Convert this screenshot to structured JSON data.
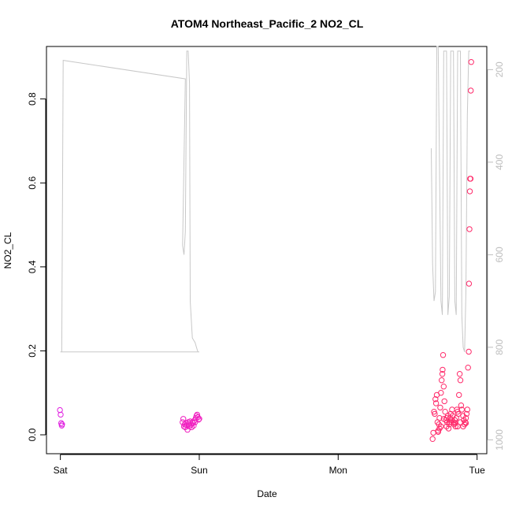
{
  "chart_data": {
    "type": "scatter",
    "title": "ATOM4 Northeast_Pacific_2 NO2_CL",
    "xlabel": "Date",
    "ylabel": "NO2_CL",
    "x_ticks": [
      {
        "day": 0,
        "label": "Sat"
      },
      {
        "day": 1,
        "label": "Sun"
      },
      {
        "day": 2,
        "label": "Mon"
      },
      {
        "day": 3,
        "label": "Tue"
      }
    ],
    "xlim": [
      -0.1,
      3.07
    ],
    "ylim": [
      -0.045,
      0.925
    ],
    "y_ticks": [
      0.0,
      0.2,
      0.4,
      0.6,
      0.8
    ],
    "y_tick_labels": [
      "0.0",
      "0.2",
      "0.4",
      "0.6",
      "0.8"
    ],
    "right_axis": {
      "reversed": true,
      "lim": [
        1030,
        150
      ],
      "ticks": [
        200,
        400,
        600,
        800,
        1000
      ],
      "tick_labels": [
        "200",
        "400",
        "600",
        "800",
        "1000"
      ],
      "color": "#bdbdbd"
    },
    "colors": {
      "pressure_line": "#c8c8c8",
      "group_sat": "#e020e0",
      "group_sun": "#f020c0",
      "group_tue": "#ff2a6a"
    },
    "pressure_line": [
      [
        0.0,
        810
      ],
      [
        0.01,
        810
      ],
      [
        0.02,
        180
      ],
      [
        0.9,
        220
      ],
      [
        0.88,
        580
      ],
      [
        0.89,
        600
      ],
      [
        0.9,
        550
      ],
      [
        0.91,
        160
      ],
      [
        0.92,
        160
      ],
      [
        0.93,
        230
      ],
      [
        0.935,
        700
      ],
      [
        0.95,
        780
      ],
      [
        0.97,
        790
      ],
      [
        0.98,
        800
      ],
      [
        0.99,
        810
      ],
      [
        1.0,
        810
      ],
      [
        0.0,
        810
      ]
    ],
    "pressure_right": [
      [
        2.67,
        370
      ],
      [
        2.68,
        620
      ],
      [
        2.69,
        700
      ],
      [
        2.7,
        680
      ],
      [
        2.71,
        150
      ],
      [
        2.72,
        150
      ],
      [
        2.74,
        700
      ],
      [
        2.75,
        730
      ],
      [
        2.76,
        160
      ],
      [
        2.78,
        160
      ],
      [
        2.79,
        730
      ],
      [
        2.8,
        690
      ],
      [
        2.81,
        160
      ],
      [
        2.83,
        160
      ],
      [
        2.84,
        700
      ],
      [
        2.85,
        730
      ],
      [
        2.86,
        160
      ],
      [
        2.88,
        160
      ],
      [
        2.89,
        730
      ],
      [
        2.9,
        800
      ],
      [
        2.91,
        810
      ],
      [
        2.92,
        680
      ],
      [
        2.93,
        300
      ],
      [
        2.94,
        160
      ],
      [
        2.95,
        160
      ]
    ],
    "series": [
      {
        "color_key": "group_sat",
        "points": [
          [
            -0.003,
            0.059
          ],
          [
            0.002,
            0.048
          ],
          [
            0.006,
            0.028
          ],
          [
            0.01,
            0.022
          ],
          [
            0.012,
            0.025
          ]
        ]
      },
      {
        "color_key": "group_sun",
        "points": [
          [
            0.88,
            0.03
          ],
          [
            0.885,
            0.038
          ],
          [
            0.89,
            0.02
          ],
          [
            0.895,
            0.025
          ],
          [
            0.9,
            0.018
          ],
          [
            0.905,
            0.028
          ],
          [
            0.91,
            0.022
          ],
          [
            0.915,
            0.012
          ],
          [
            0.92,
            0.03
          ],
          [
            0.925,
            0.026
          ],
          [
            0.93,
            0.02
          ],
          [
            0.935,
            0.032
          ],
          [
            0.94,
            0.024
          ],
          [
            0.945,
            0.018
          ],
          [
            0.95,
            0.03
          ],
          [
            0.955,
            0.028
          ],
          [
            0.96,
            0.022
          ],
          [
            0.965,
            0.034
          ],
          [
            0.97,
            0.03
          ],
          [
            0.975,
            0.04
          ],
          [
            0.98,
            0.045
          ],
          [
            0.985,
            0.048
          ],
          [
            0.99,
            0.042
          ],
          [
            0.995,
            0.036
          ],
          [
            1.0,
            0.038
          ]
        ]
      },
      {
        "color_key": "group_tue",
        "points": [
          [
            2.68,
            -0.01
          ],
          [
            2.685,
            0.005
          ],
          [
            2.69,
            0.055
          ],
          [
            2.695,
            0.05
          ],
          [
            2.7,
            0.085
          ],
          [
            2.705,
            0.075
          ],
          [
            2.71,
            0.095
          ],
          [
            2.715,
            0.03
          ],
          [
            2.72,
            0.01
          ],
          [
            2.725,
            0.025
          ],
          [
            2.73,
            0.04
          ],
          [
            2.735,
            0.065
          ],
          [
            2.74,
            0.1
          ],
          [
            2.745,
            0.13
          ],
          [
            2.75,
            0.145
          ],
          [
            2.752,
            0.155
          ],
          [
            2.755,
            0.19
          ],
          [
            2.76,
            0.115
          ],
          [
            2.765,
            0.08
          ],
          [
            2.77,
            0.055
          ],
          [
            2.775,
            0.035
          ],
          [
            2.78,
            0.02
          ],
          [
            2.785,
            0.03
          ],
          [
            2.79,
            0.045
          ],
          [
            2.795,
            0.015
          ],
          [
            2.8,
            0.025
          ],
          [
            2.805,
            0.04
          ],
          [
            2.81,
            0.05
          ],
          [
            2.815,
            0.03
          ],
          [
            2.82,
            0.06
          ],
          [
            2.825,
            0.045
          ],
          [
            2.83,
            0.03
          ],
          [
            2.835,
            0.025
          ],
          [
            2.84,
            0.035
          ],
          [
            2.845,
            0.02
          ],
          [
            2.85,
            0.04
          ],
          [
            2.855,
            0.06
          ],
          [
            2.86,
            0.055
          ],
          [
            2.865,
            0.05
          ],
          [
            2.87,
            0.095
          ],
          [
            2.875,
            0.145
          ],
          [
            2.88,
            0.13
          ],
          [
            2.885,
            0.07
          ],
          [
            2.89,
            0.06
          ],
          [
            2.9,
            0.045
          ],
          [
            2.905,
            0.035
          ],
          [
            2.91,
            0.025
          ],
          [
            2.915,
            0.03
          ],
          [
            2.92,
            0.028
          ],
          [
            2.925,
            0.05
          ],
          [
            2.93,
            0.06
          ],
          [
            2.935,
            0.16
          ],
          [
            2.94,
            0.198
          ],
          [
            2.942,
            0.36
          ],
          [
            2.945,
            0.49
          ],
          [
            2.948,
            0.58
          ],
          [
            2.95,
            0.61
          ],
          [
            2.953,
            0.61
          ],
          [
            2.955,
            0.82
          ],
          [
            2.958,
            0.888
          ],
          [
            2.72,
            0.007
          ],
          [
            2.73,
            0.015
          ],
          [
            2.74,
            0.02
          ],
          [
            2.76,
            0.038
          ],
          [
            2.78,
            0.04
          ],
          [
            2.8,
            0.03
          ],
          [
            2.82,
            0.035
          ],
          [
            2.84,
            0.028
          ],
          [
            2.86,
            0.02
          ],
          [
            2.88,
            0.03
          ],
          [
            2.9,
            0.02
          ],
          [
            2.92,
            0.04
          ]
        ]
      }
    ]
  }
}
